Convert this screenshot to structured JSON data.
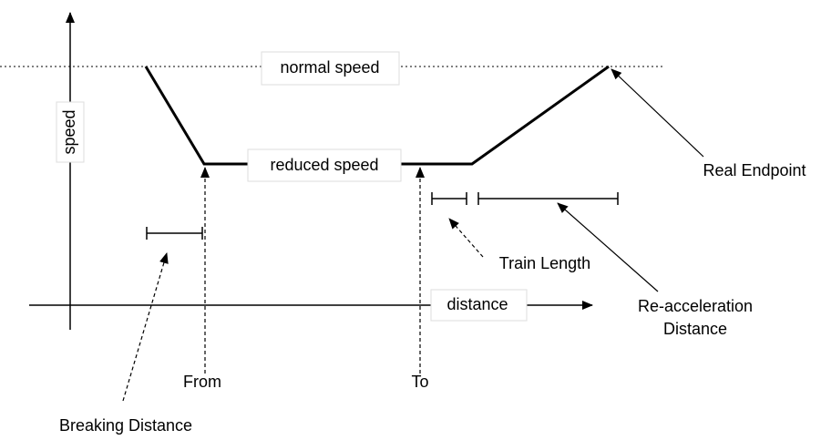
{
  "labels": {
    "y_axis": "speed",
    "x_axis": "distance",
    "normal_speed": "normal speed",
    "reduced_speed": "reduced speed",
    "from": "From",
    "to": "To",
    "breaking_distance": "Breaking Distance",
    "train_length": "Train Length",
    "reacceleration_distance": [
      "Re-acceleration",
      "Distance"
    ],
    "real_endpoint": "Real Endpoint"
  }
}
